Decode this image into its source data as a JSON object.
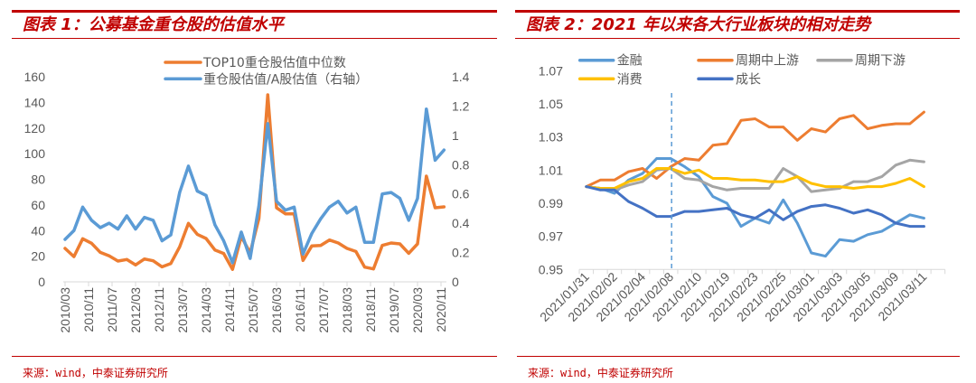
{
  "charts": [
    {
      "title": "图表 1：公募基金重仓股的估值水平",
      "source": "来源：wind，中泰证券研究所"
    },
    {
      "title": "图表 2：2021 年以来各大行业板块的相对走势",
      "source": "来源：wind，中泰证券研究所"
    }
  ],
  "colors": {
    "accent_red": "#C00000",
    "axis_text": "#595959",
    "axis_line": "#D9D9D9"
  },
  "chart_data": [
    {
      "type": "line",
      "title": "图表 1：公募基金重仓股的估值水平",
      "legend": "top-center",
      "grid": false,
      "x_axis": {
        "start": "2010/03",
        "point_interval_months": 3,
        "tick_interval_months": 8,
        "tick_labels": [
          "2010/03",
          "2010/11",
          "2011/07",
          "2012/03",
          "2012/11",
          "2013/07",
          "2014/03",
          "2014/11",
          "2015/07",
          "2016/03",
          "2016/11",
          "2017/07",
          "2018/03",
          "2018/11",
          "2019/07",
          "2020/03",
          "2020/11"
        ]
      },
      "y_left": {
        "range": [
          0,
          160
        ],
        "ticks": [
          0,
          20,
          40,
          60,
          80,
          100,
          120,
          140,
          160
        ],
        "tick_labels": [
          "0",
          "20",
          "40",
          "60",
          "80",
          "100",
          "120",
          "140",
          "160"
        ]
      },
      "y_right": {
        "range": [
          0,
          1.4
        ],
        "ticks": [
          0,
          0.2,
          0.4,
          0.6,
          0.8,
          1.0,
          1.2,
          1.4
        ],
        "tick_labels": [
          "0",
          "0.2",
          "0.4",
          "0.6",
          "0.8",
          "1",
          "1.2",
          "1.4"
        ]
      },
      "series": [
        {
          "name": "TOP10重仓股估值中位数",
          "axis": "left",
          "color": "#ED7D31",
          "values": [
            26.1,
            19.7,
            33.6,
            30.1,
            23.0,
            20.2,
            16.2,
            17.4,
            13.2,
            17.8,
            16.4,
            11.7,
            14.3,
            27.3,
            45.6,
            37.1,
            33.8,
            24.9,
            22.1,
            9.7,
            35.4,
            22.6,
            49.5,
            145.9,
            57.8,
            53.1,
            53.1,
            16.7,
            28.0,
            28.4,
            32.6,
            30.3,
            26.1,
            23.7,
            11.5,
            10.1,
            28.4,
            30.3,
            29.6,
            22.3,
            29.6,
            82.5,
            57.8,
            58.5
          ]
        },
        {
          "name": "重仓股估值/A股估值（右轴）",
          "axis": "right",
          "color": "#5B9BD5",
          "values": [
            0.29,
            0.35,
            0.51,
            0.42,
            0.37,
            0.4,
            0.36,
            0.45,
            0.36,
            0.44,
            0.42,
            0.28,
            0.32,
            0.61,
            0.79,
            0.62,
            0.59,
            0.39,
            0.28,
            0.13,
            0.34,
            0.16,
            0.52,
            1.08,
            0.55,
            0.49,
            0.51,
            0.19,
            0.33,
            0.43,
            0.51,
            0.55,
            0.47,
            0.51,
            0.27,
            0.27,
            0.6,
            0.61,
            0.57,
            0.42,
            0.57,
            1.18,
            0.83,
            0.9
          ]
        }
      ]
    },
    {
      "type": "line",
      "title": "图表 2：2021 年以来各大行业板块的相对走势",
      "legend": "top",
      "grid": false,
      "x_axis": {
        "label_every": 2,
        "tick_labels": [
          "2021/01/31",
          "2021/02/02",
          "2021/02/04",
          "2021/02/08",
          "2021/02/10",
          "2021/02/19",
          "2021/02/23",
          "2021/02/25",
          "2021/03/01",
          "2021/03/03",
          "2021/03/05",
          "2021/03/09",
          "2021/03/11"
        ]
      },
      "y_axis": {
        "range": [
          0.95,
          1.07
        ],
        "ticks": [
          0.95,
          0.97,
          0.99,
          1.01,
          1.03,
          1.05,
          1.07
        ],
        "tick_labels": [
          "0.95",
          "0.97",
          "0.99",
          "1.01",
          "1.03",
          "1.05",
          "1.07"
        ]
      },
      "marker_line": {
        "date": "2021/02/08",
        "style": "dashed",
        "color": "#5B9BD5"
      },
      "series": [
        {
          "name": "金融",
          "color": "#5B9BD5",
          "values": [
            1.0,
            0.999,
            0.996,
            1.004,
            1.008,
            1.017,
            1.017,
            1.012,
            1.006,
            0.994,
            0.99,
            0.976,
            0.981,
            0.978,
            0.992,
            0.978,
            0.96,
            0.958,
            0.968,
            0.967,
            0.971,
            0.973,
            0.978,
            0.983,
            0.981
          ]
        },
        {
          "name": "周期中上游",
          "color": "#ED7D31",
          "values": [
            1.0,
            1.004,
            1.004,
            1.009,
            1.011,
            1.005,
            1.012,
            1.017,
            1.016,
            1.025,
            1.026,
            1.04,
            1.041,
            1.036,
            1.036,
            1.028,
            1.035,
            1.033,
            1.041,
            1.043,
            1.035,
            1.037,
            1.038,
            1.038,
            1.045
          ]
        },
        {
          "name": "周期下游",
          "color": "#A5A5A5",
          "values": [
            1.0,
            0.999,
            0.998,
            1.001,
            1.003,
            1.01,
            1.011,
            1.005,
            1.004,
            1.0,
            0.998,
            0.999,
            0.999,
            0.999,
            1.011,
            1.006,
            0.997,
            0.998,
            0.999,
            1.003,
            1.003,
            1.006,
            1.013,
            1.016,
            1.015
          ]
        },
        {
          "name": "消费",
          "color": "#FFC000",
          "values": [
            1.0,
            0.999,
            0.999,
            1.003,
            1.005,
            1.011,
            1.011,
            1.008,
            1.01,
            1.005,
            1.005,
            1.004,
            1.004,
            1.003,
            1.003,
            1.006,
            1.002,
            1.0,
            1.0,
            0.999,
            1.0,
            1.0,
            1.002,
            1.005,
            1.0
          ]
        },
        {
          "name": "成长",
          "color": "#4472C4",
          "values": [
            1.0,
            0.998,
            0.998,
            0.991,
            0.987,
            0.982,
            0.982,
            0.985,
            0.985,
            0.986,
            0.987,
            0.983,
            0.981,
            0.986,
            0.98,
            0.985,
            0.988,
            0.989,
            0.987,
            0.984,
            0.986,
            0.983,
            0.978,
            0.976,
            0.976
          ]
        }
      ]
    }
  ]
}
